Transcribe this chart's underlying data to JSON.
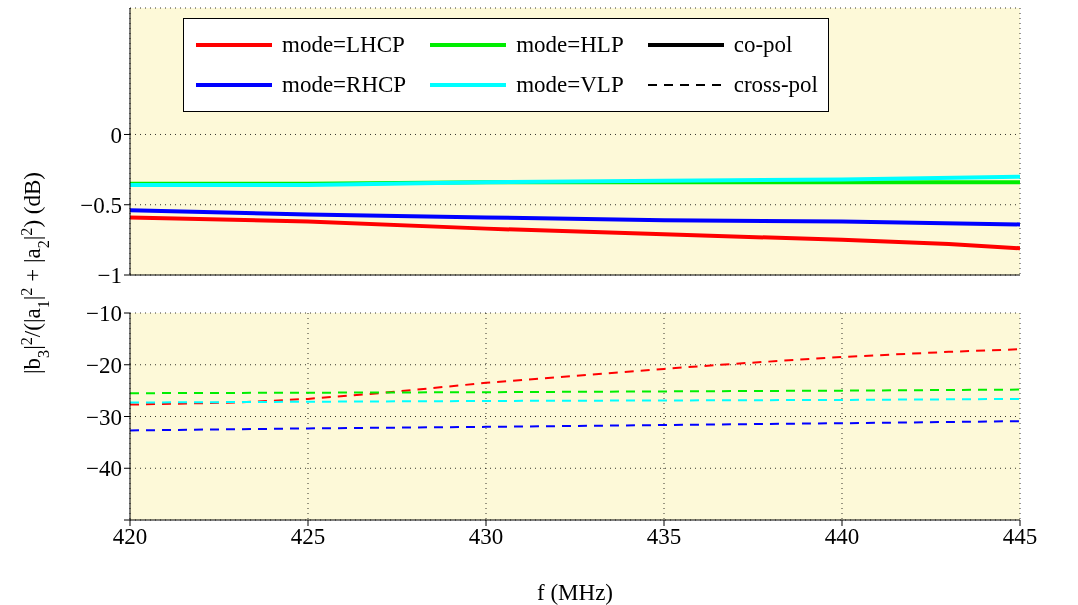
{
  "chart_data": [
    {
      "type": "line",
      "ylabel": "|b$_{3}$|$^{2}$/(|a$_{1}$|$^{2}$ + |a$_{2}$|$^{2}$) (dB)",
      "xlim": [
        420,
        445
      ],
      "xticks": [
        420,
        425,
        430,
        435,
        440,
        445
      ],
      "ylim": [
        -1,
        0.9
      ],
      "yticks": [
        -1,
        -0.5,
        0
      ],
      "grid": true,
      "legend": "top",
      "tick_labels": "y",
      "series": [
        {
          "name": "mode=LHCP",
          "color": "#ff0000",
          "line_style": "solid",
          "x": [
            420,
            425,
            430,
            435,
            440,
            443,
            445
          ],
          "values": [
            -0.59,
            -0.62,
            -0.67,
            -0.71,
            -0.75,
            -0.78,
            -0.81
          ]
        },
        {
          "name": "mode=RHCP",
          "color": "#0000ff",
          "line_style": "solid",
          "x": [
            420,
            425,
            430,
            435,
            440,
            445
          ],
          "values": [
            -0.54,
            -0.57,
            -0.59,
            -0.61,
            -0.62,
            -0.64
          ]
        },
        {
          "name": "mode=HLP",
          "color": "#00ee00",
          "line_style": "solid",
          "x": [
            420,
            425,
            430,
            435,
            440,
            445
          ],
          "values": [
            -0.35,
            -0.35,
            -0.34,
            -0.34,
            -0.34,
            -0.34
          ]
        },
        {
          "name": "mode=VLP",
          "color": "#00ffff",
          "line_style": "solid",
          "x": [
            420,
            425,
            430,
            435,
            440,
            445
          ],
          "values": [
            -0.36,
            -0.36,
            -0.34,
            -0.33,
            -0.32,
            -0.3
          ]
        },
        {
          "name": "co-pol",
          "color": "#000000",
          "line_style": "solid"
        },
        {
          "name": "cross-pol",
          "color": "#000000",
          "line_style": "dashed"
        }
      ]
    },
    {
      "type": "line",
      "xlabel": "f (MHz)",
      "xlim": [
        420,
        445
      ],
      "xticks": [
        420,
        425,
        430,
        435,
        440,
        445
      ],
      "ylim": [
        -50,
        -10
      ],
      "yticks": [
        {
          "value": -50,
          "label": null
        },
        -40,
        -30,
        -20,
        -10
      ],
      "grid": true,
      "series": [
        {
          "color": "#ff0000",
          "line_style": "dashed",
          "x": [
            420,
            423,
            425,
            427,
            430,
            435,
            437,
            440,
            443,
            445
          ],
          "values": [
            -27.7,
            -27.3,
            -26.6,
            -25.5,
            -23.5,
            -20.8,
            -19.8,
            -18.5,
            -17.5,
            -17.0
          ]
        },
        {
          "color": "#00ee00",
          "line_style": "dashed",
          "x": [
            420,
            430,
            440,
            445
          ],
          "values": [
            -25.5,
            -25.3,
            -25.0,
            -24.8
          ]
        },
        {
          "color": "#00ffff",
          "line_style": "dashed",
          "x": [
            420,
            430,
            440,
            445
          ],
          "values": [
            -27.3,
            -27.0,
            -26.8,
            -26.6
          ]
        },
        {
          "color": "#0000ff",
          "line_style": "dashed",
          "x": [
            420,
            425,
            430,
            437,
            440,
            445
          ],
          "values": [
            -32.7,
            -32.3,
            -32.0,
            -31.5,
            -31.3,
            -30.9
          ]
        }
      ]
    }
  ]
}
